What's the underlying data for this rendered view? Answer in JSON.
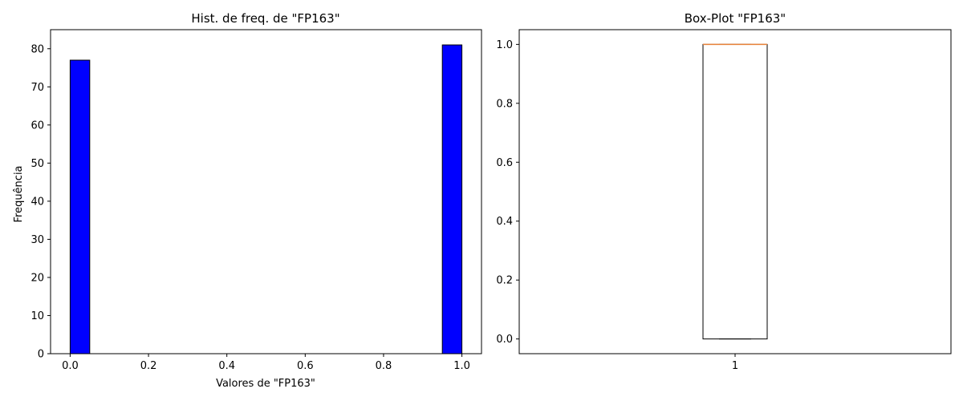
{
  "chart_data": [
    {
      "type": "bar",
      "title": "Hist. de freq. de \"FP163\"",
      "xlabel": "Valores de \"FP163\"",
      "ylabel": "Frequência",
      "bins": 20,
      "bin_width": 0.05,
      "bars": [
        {
          "x_start": 0.0,
          "x_end": 0.05,
          "value": 77
        },
        {
          "x_start": 0.95,
          "x_end": 1.0,
          "value": 81
        }
      ],
      "xlim": [
        -0.05,
        1.05
      ],
      "ylim": [
        0,
        85
      ],
      "xticks": [
        {
          "value": 0.0,
          "label": "0.0"
        },
        {
          "value": 0.2,
          "label": "0.2"
        },
        {
          "value": 0.4,
          "label": "0.4"
        },
        {
          "value": 0.6,
          "label": "0.6"
        },
        {
          "value": 0.8,
          "label": "0.8"
        },
        {
          "value": 1.0,
          "label": "1.0"
        }
      ],
      "yticks": [
        {
          "value": 0,
          "label": "0"
        },
        {
          "value": 10,
          "label": "10"
        },
        {
          "value": 20,
          "label": "20"
        },
        {
          "value": 30,
          "label": "30"
        },
        {
          "value": 40,
          "label": "40"
        },
        {
          "value": 50,
          "label": "50"
        },
        {
          "value": 60,
          "label": "60"
        },
        {
          "value": 70,
          "label": "70"
        },
        {
          "value": 80,
          "label": "80"
        }
      ],
      "bar_color": "#0000ff",
      "edge_color": "#000000",
      "grid": false
    },
    {
      "type": "box",
      "title": "Box-Plot \"FP163\"",
      "categories": [
        "1"
      ],
      "stats": {
        "min": 0.0,
        "q1": 0.0,
        "median": 1.0,
        "q3": 1.0,
        "max": 1.0
      },
      "ylim": [
        -0.05,
        1.05
      ],
      "yticks": [
        {
          "value": 0.0,
          "label": "0.0"
        },
        {
          "value": 0.2,
          "label": "0.2"
        },
        {
          "value": 0.4,
          "label": "0.4"
        },
        {
          "value": 0.6,
          "label": "0.6"
        },
        {
          "value": 0.8,
          "label": "0.8"
        },
        {
          "value": 1.0,
          "label": "1.0"
        }
      ],
      "median_color": "#e8833a",
      "box_color": "#000000",
      "grid": false
    }
  ]
}
